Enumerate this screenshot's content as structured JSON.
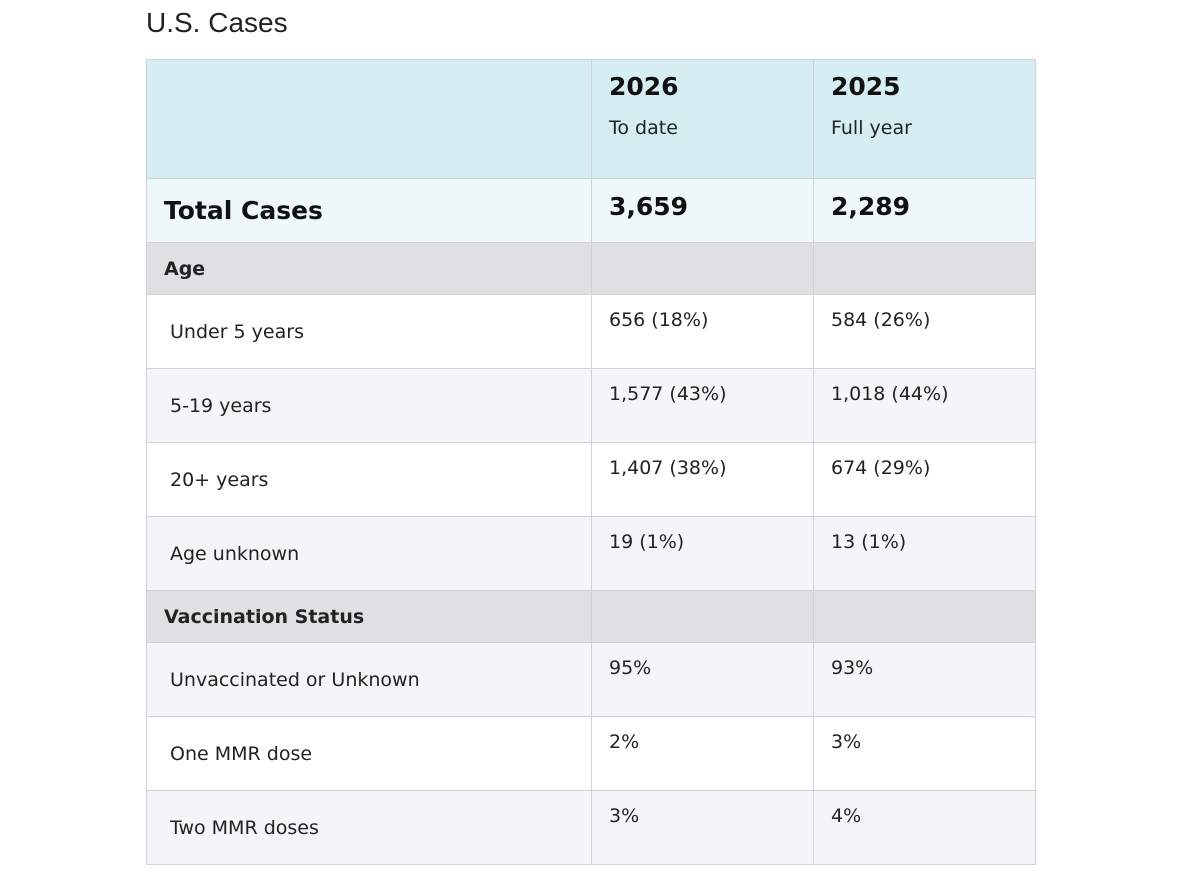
{
  "title": "U.S. Cases",
  "header": {
    "col1": {
      "year": "2026",
      "period": "To date"
    },
    "col2": {
      "year": "2025",
      "period": "Full year"
    }
  },
  "total": {
    "label": "Total Cases",
    "v2026": "3,659",
    "v2025": "2,289"
  },
  "sections": [
    {
      "label": "Age",
      "rows": [
        {
          "label": "Under 5 years",
          "v2026": "656 (18%)",
          "v2025": "584 (26%)"
        },
        {
          "label": "5-19 years",
          "v2026": "1,577 (43%)",
          "v2025": "1,018 (44%)"
        },
        {
          "label": "20+ years",
          "v2026": "1,407 (38%)",
          "v2025": "674 (29%)"
        },
        {
          "label": "Age unknown",
          "v2026": "19 (1%)",
          "v2025": "13 (1%)"
        }
      ]
    },
    {
      "label": "Vaccination Status",
      "rows": [
        {
          "label": "Unvaccinated or Unknown",
          "v2026": "95%",
          "v2025": "93%"
        },
        {
          "label": "One MMR dose",
          "v2026": "2%",
          "v2025": "3%"
        },
        {
          "label": "Two MMR doses",
          "v2026": "3%",
          "v2025": "4%"
        }
      ]
    }
  ]
}
